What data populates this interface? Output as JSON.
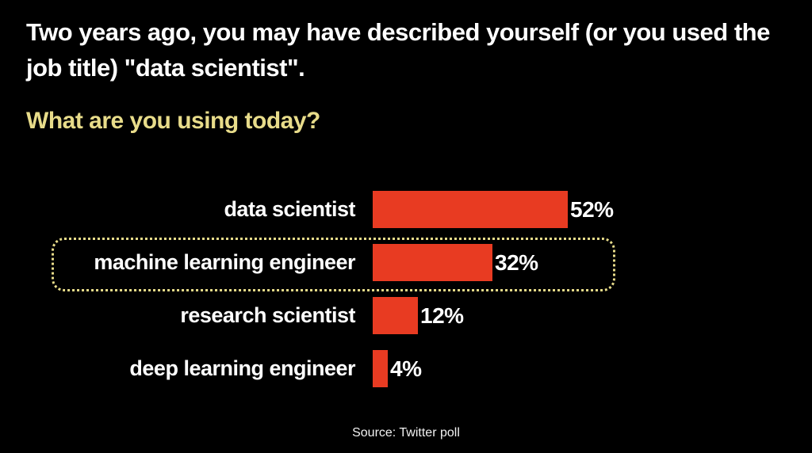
{
  "header": {
    "title": "Two years ago, you may have described yourself (or you used the job title) \"data scientist\".",
    "subtitle": "What are you using today?"
  },
  "chart_data": {
    "type": "bar",
    "orientation": "horizontal",
    "categories": [
      "data scientist",
      "machine learning engineer",
      "research scientist",
      "deep learning engineer"
    ],
    "values": [
      52,
      32,
      12,
      4
    ],
    "value_labels": [
      "52%",
      "32%",
      "12%",
      "4%"
    ],
    "xlim": [
      0,
      100
    ],
    "grid": false,
    "legend": false,
    "bar_color": "#e83b22",
    "highlighted_category": "machine learning engineer",
    "highlight_border_color": "#e8dc8a",
    "title": "What are you using today?",
    "xlabel": "",
    "ylabel": ""
  },
  "colors": {
    "background": "#000000",
    "title_text": "#ffffff",
    "subtitle_text": "#e8dc8a",
    "bar": "#e83b22",
    "highlight_border": "#e8dc8a"
  },
  "footer": {
    "source": "Source: Twitter poll"
  }
}
